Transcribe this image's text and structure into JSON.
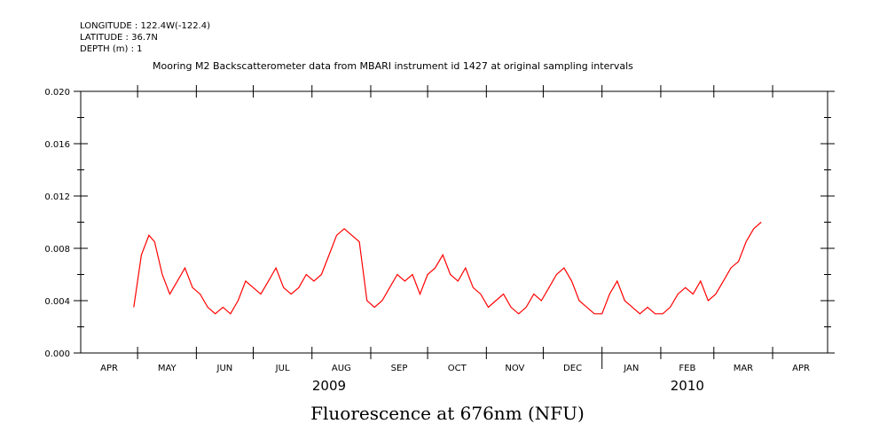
{
  "header": {
    "longitude": "LONGITUDE : 122.4W(-122.4)",
    "latitude": "LATITUDE : 36.7N",
    "depth": "DEPTH (m) : 1"
  },
  "chart_data": {
    "type": "line",
    "title": "Mooring M2 Backscatterometer data from MBARI instrument id 1427 at original sampling intervals",
    "xlabel": "Fluorescence at 676nm (NFU)",
    "ylabel": "",
    "ylim": [
      0,
      0.02
    ],
    "xlim": [
      "2009-04-01",
      "2010-04-30"
    ],
    "yticks": [
      "0.000",
      "0.004",
      "0.008",
      "0.012",
      "0.016",
      "0.020"
    ],
    "month_ticks": [
      "APR",
      "MAY",
      "JUN",
      "JUL",
      "AUG",
      "SEP",
      "OCT",
      "NOV",
      "DEC",
      "JAN",
      "FEB",
      "MAR",
      "APR"
    ],
    "years": [
      "2009",
      "2010"
    ],
    "color": "#ff0000",
    "series": [
      {
        "x": [
          "2009-04-29",
          "2009-05-03",
          "2009-05-07",
          "2009-05-10",
          "2009-05-14",
          "2009-05-18",
          "2009-05-22",
          "2009-05-26",
          "2009-05-30",
          "2009-06-03",
          "2009-06-07",
          "2009-06-11",
          "2009-06-15",
          "2009-06-19",
          "2009-06-23",
          "2009-06-27",
          "2009-07-01",
          "2009-07-05",
          "2009-07-09",
          "2009-07-13",
          "2009-07-17",
          "2009-07-21",
          "2009-07-25",
          "2009-07-29",
          "2009-08-02",
          "2009-08-06",
          "2009-08-10",
          "2009-08-14",
          "2009-08-18",
          "2009-08-22",
          "2009-08-26",
          "2009-08-30",
          "2009-09-03",
          "2009-09-07",
          "2009-09-11",
          "2009-09-15",
          "2009-09-19",
          "2009-09-23",
          "2009-09-27",
          "2009-10-01",
          "2009-10-05",
          "2009-10-09",
          "2009-10-13",
          "2009-10-17",
          "2009-10-21",
          "2009-10-25",
          "2009-10-29",
          "2009-11-02",
          "2009-11-06",
          "2009-11-10",
          "2009-11-14",
          "2009-11-18",
          "2009-11-22",
          "2009-11-26",
          "2009-11-30",
          "2009-12-04",
          "2009-12-08",
          "2009-12-12",
          "2009-12-16",
          "2009-12-20",
          "2009-12-24",
          "2009-12-28",
          "2010-01-01",
          "2010-01-05",
          "2010-01-09",
          "2010-01-13",
          "2010-01-17",
          "2010-01-21",
          "2010-01-25",
          "2010-01-29",
          "2010-02-02",
          "2010-02-06",
          "2010-02-10",
          "2010-02-14",
          "2010-02-18",
          "2010-02-22",
          "2010-02-26",
          "2010-03-02",
          "2010-03-06",
          "2010-03-10",
          "2010-03-14",
          "2010-03-18",
          "2010-03-22",
          "2010-03-26"
        ],
        "values": [
          0.0035,
          0.0075,
          0.009,
          0.0085,
          0.006,
          0.0045,
          0.0055,
          0.0065,
          0.005,
          0.0045,
          0.0035,
          0.003,
          0.0035,
          0.003,
          0.004,
          0.0055,
          0.005,
          0.0045,
          0.0055,
          0.0065,
          0.005,
          0.0045,
          0.005,
          0.006,
          0.0055,
          0.006,
          0.0075,
          0.009,
          0.0095,
          0.009,
          0.0085,
          0.004,
          0.0035,
          0.004,
          0.005,
          0.006,
          0.0055,
          0.006,
          0.0045,
          0.006,
          0.0065,
          0.0075,
          0.006,
          0.0055,
          0.0065,
          0.005,
          0.0045,
          0.0035,
          0.004,
          0.0045,
          0.0035,
          0.003,
          0.0035,
          0.0045,
          0.004,
          0.005,
          0.006,
          0.0065,
          0.0055,
          0.004,
          0.0035,
          0.003,
          0.003,
          0.0045,
          0.0055,
          0.004,
          0.0035,
          0.003,
          0.0035,
          0.003,
          0.003,
          0.0035,
          0.0045,
          0.005,
          0.0045,
          0.0055,
          0.004,
          0.0045,
          0.0055,
          0.0065,
          0.007,
          0.0085,
          0.0095,
          0.01
        ]
      }
    ]
  }
}
